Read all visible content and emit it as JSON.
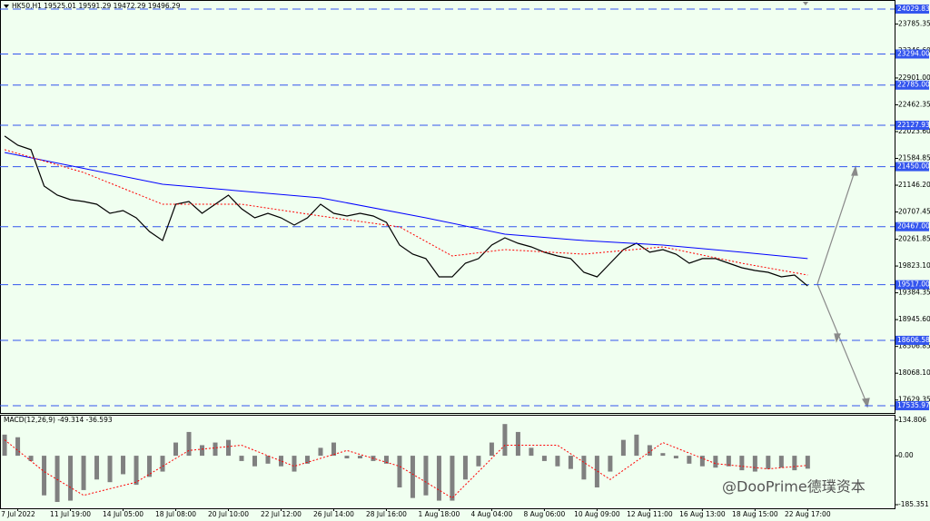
{
  "chart_data": [
    {
      "type": "line",
      "title": "HK50,H1  19525.01 19591.29 19472.29 19496.29",
      "x": [
        0,
        1,
        2,
        3,
        4,
        5,
        6,
        7,
        8,
        9,
        10,
        11,
        12,
        13,
        14,
        15,
        16,
        17,
        18,
        19,
        20,
        21,
        22,
        23,
        24,
        25,
        26,
        27,
        28,
        29,
        30,
        31,
        32,
        33,
        34,
        35,
        36,
        37,
        38,
        39,
        40,
        41,
        42,
        43,
        44,
        45,
        46,
        47,
        48,
        49,
        50,
        51,
        52,
        53,
        54,
        55,
        56,
        57,
        58,
        59,
        60,
        61
      ],
      "xlim": [
        -0.35,
        67.6
      ],
      "xticks": [
        {
          "value": 1,
          "label": "7 Jul 2022"
        },
        {
          "value": 5,
          "label": "11 Jul 19:00"
        },
        {
          "value": 9,
          "label": "14 Jul 05:00"
        },
        {
          "value": 13,
          "label": "18 Jul 08:00"
        },
        {
          "value": 17,
          "label": "20 Jul 10:00"
        },
        {
          "value": 21,
          "label": "22 Jul 12:00"
        },
        {
          "value": 25,
          "label": "26 Jul 14:00"
        },
        {
          "value": 29,
          "label": "28 Jul 16:00"
        },
        {
          "value": 33,
          "label": "1 Aug 18:00"
        },
        {
          "value": 37,
          "label": "4 Aug 04:00"
        },
        {
          "value": 41,
          "label": "8 Aug 06:00"
        },
        {
          "value": 45,
          "label": "10 Aug 09:00"
        },
        {
          "value": 49,
          "label": "12 Aug 11:00"
        },
        {
          "value": 53,
          "label": "16 Aug 13:00"
        },
        {
          "value": 57,
          "label": "18 Aug 15:00"
        },
        {
          "value": 61,
          "label": "22 Aug 17:00"
        }
      ],
      "ylim": [
        17417,
        24178
      ],
      "yticks": [
        23785.35,
        {
          "value": 23346.6,
          "label": "23346.60"
        },
        {
          "value": 22901,
          "label": "22901.00"
        },
        22462.35,
        {
          "value": 22023.6,
          "label": "22023.60"
        },
        21584.85,
        {
          "value": 21146.2,
          "label": "21146.20"
        },
        20707.45,
        20261.85,
        {
          "value": 19823.1,
          "label": "19823.10"
        },
        19384.35,
        {
          "value": 18945.6,
          "label": "18945.60"
        },
        18506.85,
        {
          "value": 18068.1,
          "label": "18068.10"
        },
        17629.35
      ],
      "levels": [
        24029.83,
        {
          "value": 23294,
          "label": "23294.00"
        },
        {
          "value": 22785,
          "label": "22785.00"
        },
        22127.93,
        {
          "value": 21450,
          "label": "21450.00"
        },
        {
          "value": 20467,
          "label": "20467.00"
        },
        {
          "value": 19517,
          "label": "19517.00"
        },
        18606.58,
        17535.97
      ],
      "level_color": "#3355ee",
      "series": [
        {
          "color": "#000000",
          "values": [
            21950,
            21801,
            21727,
            21132,
            20983,
            20909,
            20879,
            20835,
            20686,
            20731,
            20612,
            20389,
            20240,
            20835,
            20879,
            20686,
            20835,
            20983,
            20761,
            20612,
            20686,
            20612,
            20493,
            20612,
            20835,
            20686,
            20642,
            20686,
            20642,
            20538,
            20166,
            20018,
            19944,
            19646,
            19646,
            19869,
            19944,
            20166,
            20285,
            20196,
            20137,
            20048,
            19988,
            19944,
            19720,
            19646,
            19869,
            20092,
            20196,
            20048,
            20092,
            20018,
            19869,
            19944,
            19944,
            19869,
            19795,
            19750,
            19720,
            19646,
            19676,
            19496
          ]
        },
        {
          "color": "#0000ff",
          "x": [
            0,
            12,
            24,
            32,
            38,
            44,
            50,
            56,
            61
          ],
          "values": [
            21682,
            21162,
            20939,
            20612,
            20345,
            20240,
            20166,
            20048,
            19944
          ]
        },
        {
          "color": "#ff0000",
          "dotted": true,
          "x": [
            0,
            6,
            12,
            18,
            24,
            30,
            34,
            38,
            44,
            50,
            56,
            61
          ],
          "values": [
            21727,
            21355,
            20835,
            20835,
            20642,
            20463,
            19988,
            20092,
            20018,
            20137,
            19869,
            19676
          ]
        }
      ]
    },
    {
      "type": "macd",
      "title": "MACD(12,26,9) -49.314 -36.593",
      "ylim": [
        -199,
        155
      ],
      "yticks": [
        134.806,
        {
          "value": 0,
          "label": "0.00"
        },
        -185.351
      ],
      "histogram": {
        "color": "#808080",
        "values": [
          80,
          70,
          -20,
          -150,
          -175,
          -170,
          -130,
          -90,
          -100,
          -70,
          -110,
          -80,
          -60,
          50,
          90,
          40,
          50,
          60,
          -20,
          -40,
          -30,
          -40,
          -60,
          -30,
          30,
          50,
          -10,
          -10,
          -20,
          -30,
          -120,
          -160,
          -150,
          -170,
          -170,
          -90,
          -40,
          50,
          120,
          90,
          30,
          -20,
          -40,
          -50,
          -90,
          -120,
          -60,
          60,
          80,
          40,
          10,
          -10,
          -30,
          -40,
          -45,
          -40,
          -55,
          -60,
          -50,
          -45,
          -55,
          -49
        ]
      },
      "signal": {
        "color": "#ff0000",
        "x": [
          0,
          3,
          6,
          10,
          14,
          18,
          22,
          26,
          30,
          34,
          38,
          42,
          46,
          50,
          54,
          58,
          61
        ],
        "values": [
          60,
          -60,
          -150,
          -100,
          20,
          40,
          -40,
          20,
          -40,
          -160,
          40,
          40,
          -90,
          50,
          -30,
          -50,
          -36.593
        ]
      }
    }
  ],
  "watermark": "@DooPrime德璞资本"
}
